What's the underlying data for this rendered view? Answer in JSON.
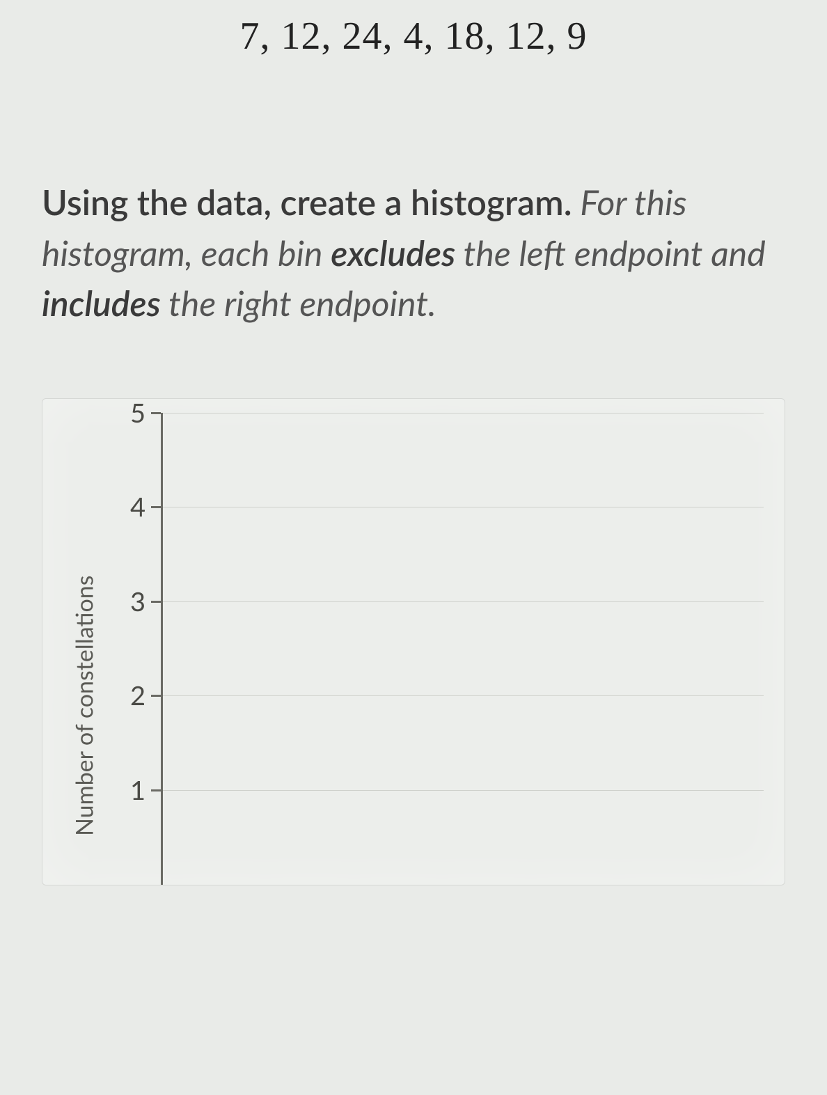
{
  "data_values": "7, 12, 24, 4, 18, 12, 9",
  "instruction": {
    "lead": "Using the data, create a histogram.",
    "rest1": " For this histogram, each bin ",
    "excludes": "excludes",
    "rest2": " the left endpoint and ",
    "includes": "includes",
    "rest3": " the right endpoint."
  },
  "chart": {
    "type": "histogram",
    "ylabel": "Number of constellations",
    "ylim": [
      0,
      5
    ],
    "ytick_step": 1,
    "yticks": [
      5,
      4,
      3,
      2,
      1
    ],
    "axis_color": "#6a6a64",
    "grid_color": "#cfd1cc",
    "background_color": "#eceeeb",
    "label_fontsize": 34,
    "tick_fontsize": 38
  },
  "colors": {
    "page_bg": "#e9ebe8",
    "text_primary": "#303030",
    "text_muted": "#555555"
  }
}
